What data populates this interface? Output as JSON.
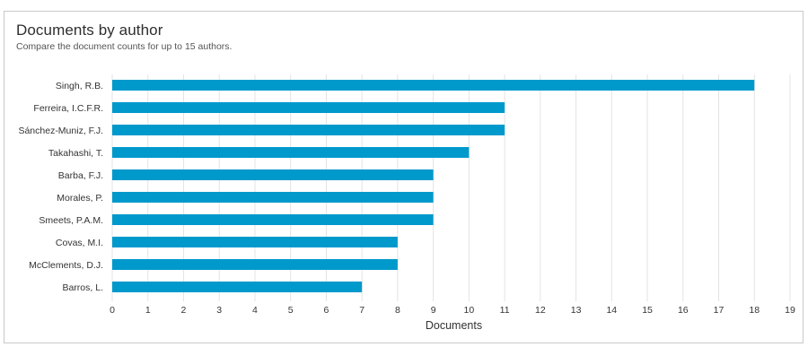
{
  "header": {
    "title": "Documents by author",
    "subtitle": "Compare the document counts for up to 15 authors."
  },
  "colors": {
    "bar": "#0099cc",
    "grid": "#e3e3e3",
    "text": "#333333"
  },
  "chart_data": {
    "type": "bar",
    "orientation": "horizontal",
    "title": "Documents by author",
    "subtitle": "Compare the document counts for up to 15 authors.",
    "xlabel": "Documents",
    "ylabel": "",
    "categories": [
      "Singh, R.B.",
      "Ferreira, I.C.F.R.",
      "Sánchez-Muniz, F.J.",
      "Takahashi, T.",
      "Barba, F.J.",
      "Morales, P.",
      "Smeets, P.A.M.",
      "Covas, M.I.",
      "McClements, D.J.",
      "Barros, L."
    ],
    "values": [
      18,
      11,
      11,
      10,
      9,
      9,
      9,
      8,
      8,
      7
    ],
    "xlim": [
      0,
      19
    ],
    "xticks": [
      0,
      1,
      2,
      3,
      4,
      5,
      6,
      7,
      8,
      9,
      10,
      11,
      12,
      13,
      14,
      15,
      16,
      17,
      18,
      19
    ],
    "grid": "vertical",
    "legend": "none"
  }
}
